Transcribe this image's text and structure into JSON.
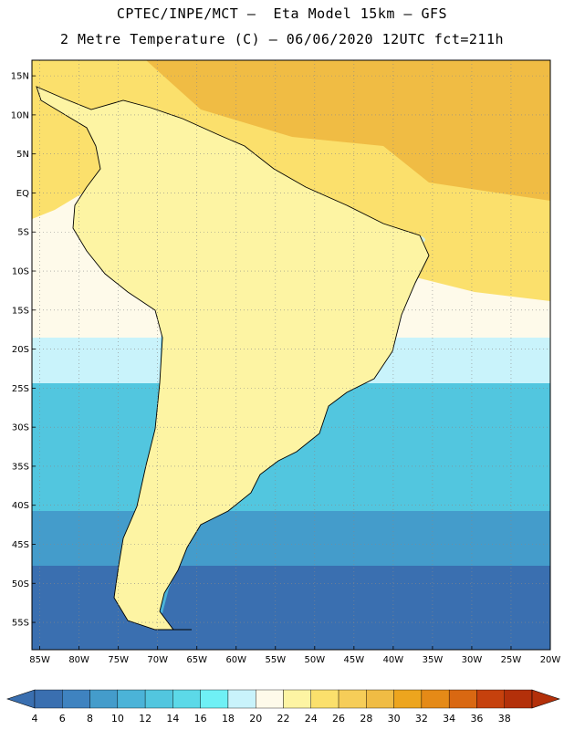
{
  "header": {
    "line1": "CPTEC/INPE/MCT –  Eta Model 15km – GFS",
    "line2": "2 Metre Temperature (C) – 06/06/2020 12UTC fct=211h"
  },
  "axes": {
    "lat_labels": [
      "15N",
      "10N",
      "5N",
      "EQ",
      "5S",
      "10S",
      "15S",
      "20S",
      "25S",
      "30S",
      "35S",
      "40S",
      "45S",
      "50S",
      "55S"
    ],
    "lat_values": [
      15,
      10,
      5,
      0,
      -5,
      -10,
      -15,
      -20,
      -25,
      -30,
      -35,
      -40,
      -45,
      -50,
      -55
    ],
    "lon_labels": [
      "85W",
      "80W",
      "75W",
      "70W",
      "65W",
      "60W",
      "55W",
      "50W",
      "45W",
      "40W",
      "35W",
      "30W",
      "25W",
      "20W"
    ],
    "lon_values": [
      -85,
      -80,
      -75,
      -70,
      -65,
      -60,
      -55,
      -50,
      -45,
      -40,
      -35,
      -30,
      -25,
      -20
    ],
    "lon_range": [
      -86,
      -20
    ],
    "lat_range": [
      -58.5,
      17
    ],
    "grid": true
  },
  "colorbar": {
    "labels": [
      "4",
      "6",
      "8",
      "10",
      "12",
      "14",
      "16",
      "18",
      "20",
      "22",
      "24",
      "26",
      "28",
      "30",
      "32",
      "34",
      "36",
      "38"
    ],
    "colors": [
      "#3a6fb0",
      "#3f83c0",
      "#449ccb",
      "#4bb3d8",
      "#52c6df",
      "#5cd9e8",
      "#6ff0f5",
      "#c9f3fb",
      "#fefaea",
      "#fdf4a3",
      "#fbe06c",
      "#f6cd58",
      "#f0bc44",
      "#eda51e",
      "#e58a17",
      "#d96812",
      "#c6410d",
      "#b3300a"
    ]
  },
  "palette": {
    "ocean_deep": "#3a6fb0",
    "ocean_mid": "#449ccb",
    "ocean_light": "#52c6df",
    "ocean_pale": "#c9f3fb",
    "cream": "#fefaea",
    "warm_yellow": "#fbe06c",
    "warm_orange": "#f0bc44",
    "land_cold": "#3a6fb0",
    "land_cool": "#4bb3d8"
  }
}
